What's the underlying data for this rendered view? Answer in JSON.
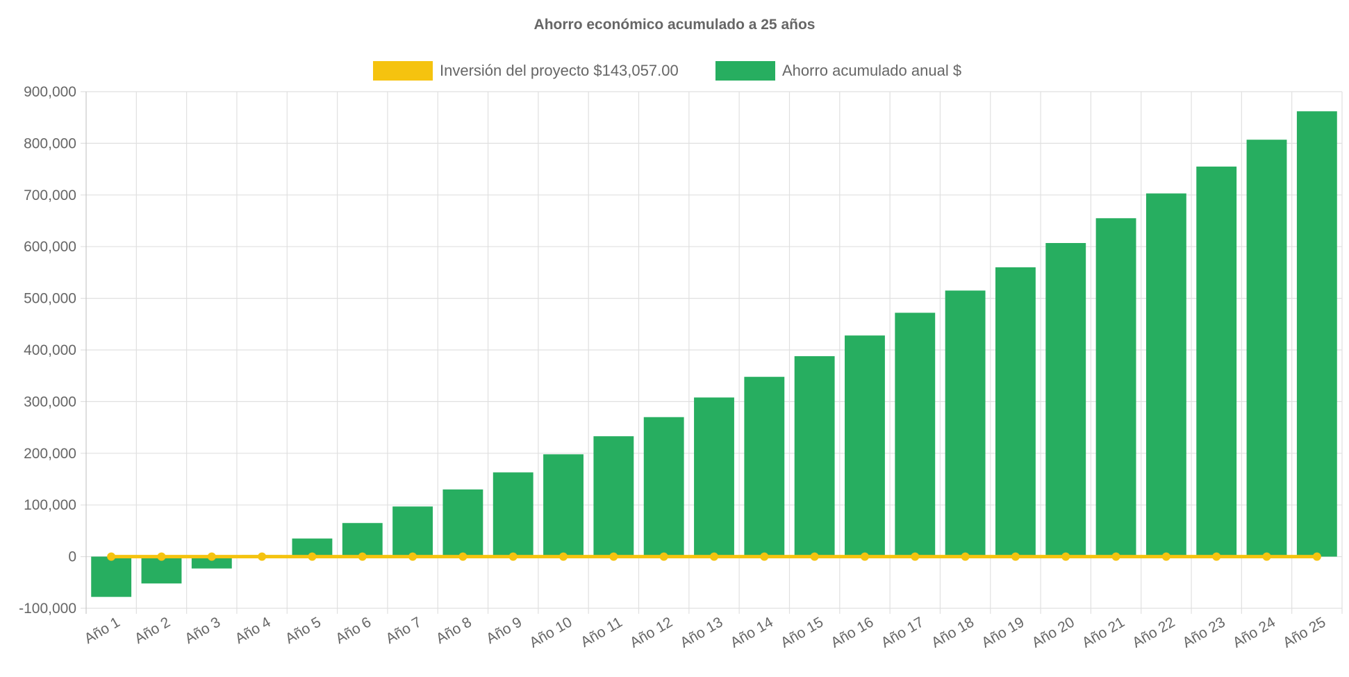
{
  "chart_data": {
    "type": "bar",
    "title": "Ahorro económico acumulado a 25 años",
    "categories": [
      "Año 1",
      "Año 2",
      "Año 3",
      "Año 4",
      "Año 5",
      "Año 6",
      "Año 7",
      "Año 8",
      "Año 9",
      "Año 10",
      "Año 11",
      "Año 12",
      "Año 13",
      "Año 14",
      "Año 15",
      "Año 16",
      "Año 17",
      "Año 18",
      "Año 19",
      "Año 20",
      "Año 21",
      "Año 22",
      "Año 23",
      "Año 24",
      "Año 25"
    ],
    "series": [
      {
        "name": "Inversión del proyecto $143,057.00",
        "type": "line",
        "color": "#f5c30f",
        "values": [
          0,
          0,
          0,
          0,
          0,
          0,
          0,
          0,
          0,
          0,
          0,
          0,
          0,
          0,
          0,
          0,
          0,
          0,
          0,
          0,
          0,
          0,
          0,
          0,
          0
        ]
      },
      {
        "name": "Ahorro acumulado anual $",
        "type": "bar",
        "color": "#27ae60",
        "values": [
          -78000,
          -52000,
          -23000,
          3000,
          35000,
          65000,
          97000,
          130000,
          163000,
          198000,
          233000,
          270000,
          308000,
          348000,
          388000,
          428000,
          472000,
          515000,
          560000,
          607000,
          655000,
          703000,
          755000,
          807000,
          862000
        ]
      }
    ],
    "ylim": [
      -100000,
      900000
    ],
    "yticks": [
      -100000,
      0,
      100000,
      200000,
      300000,
      400000,
      500000,
      600000,
      700000,
      800000,
      900000
    ],
    "ytick_labels": [
      "-100,000",
      "0",
      "100,000",
      "200,000",
      "300,000",
      "400,000",
      "500,000",
      "600,000",
      "700,000",
      "800,000",
      "900,000"
    ],
    "grid": true,
    "legend_position": "top"
  }
}
